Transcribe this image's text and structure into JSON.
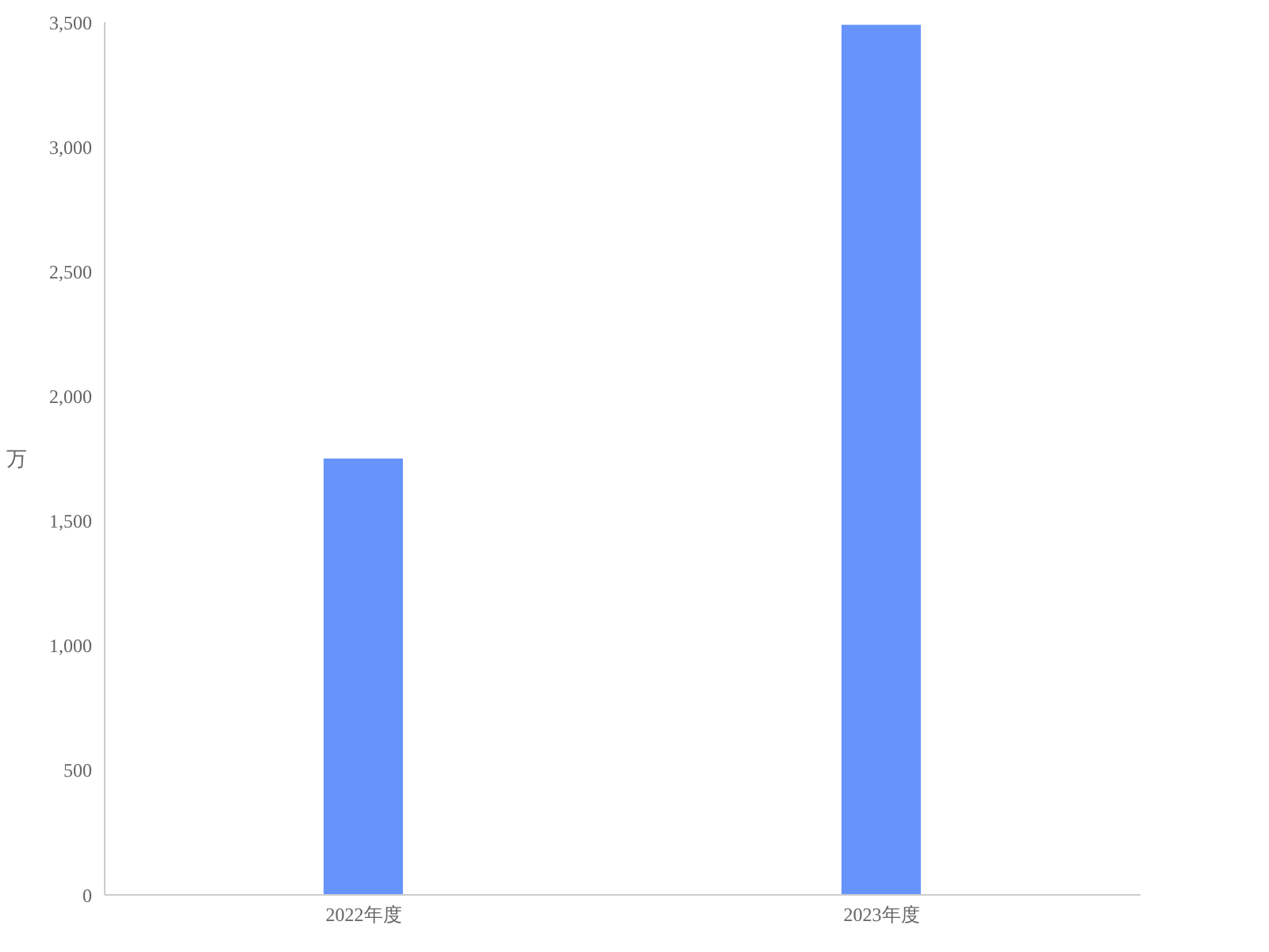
{
  "chart_data": {
    "type": "bar",
    "ylabel": "万",
    "categories": [
      "2022年度",
      "2023年度"
    ],
    "values": [
      1750,
      3490
    ],
    "color": "#6794fc",
    "ylim": [
      0,
      3500
    ],
    "yticks": [
      {
        "value": 0,
        "label": "0"
      },
      {
        "value": 500,
        "label": "500"
      },
      {
        "value": 1000,
        "label": "1,000"
      },
      {
        "value": 1500,
        "label": "1,500"
      },
      {
        "value": 2000,
        "label": "2,000"
      },
      {
        "value": 2500,
        "label": "2,500"
      },
      {
        "value": 3000,
        "label": "3,000"
      },
      {
        "value": 3500,
        "label": "3,500"
      }
    ],
    "grid": false
  }
}
